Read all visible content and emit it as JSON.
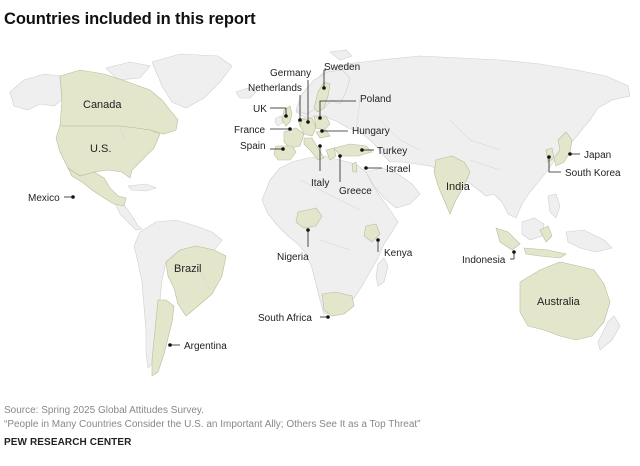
{
  "title": "Countries included in this report",
  "map": {
    "included_fill": "#e4e6cc",
    "other_fill": "#efefef",
    "countries": {
      "canada": "Canada",
      "us": "U.S.",
      "mexico": "Mexico",
      "brazil": "Brazil",
      "argentina": "Argentina",
      "germany": "Germany",
      "sweden": "Sweden",
      "netherlands": "Netherlands",
      "uk": "UK",
      "poland": "Poland",
      "france": "France",
      "hungary": "Hungary",
      "spain": "Spain",
      "italy": "Italy",
      "greece": "Greece",
      "turkey": "Turkey",
      "israel": "Israel",
      "nigeria": "Nigeria",
      "kenya": "Kenya",
      "south_africa": "South Africa",
      "india": "India",
      "japan": "Japan",
      "south_korea": "South Korea",
      "indonesia": "Indonesia",
      "australia": "Australia"
    }
  },
  "footer": {
    "source": "Source: Spring 2025 Global Attitudes Survey.",
    "report": "“People in Many Countries Consider the U.S. an Important Ally; Others See It as a Top Threat”",
    "brand": "PEW RESEARCH CENTER"
  }
}
